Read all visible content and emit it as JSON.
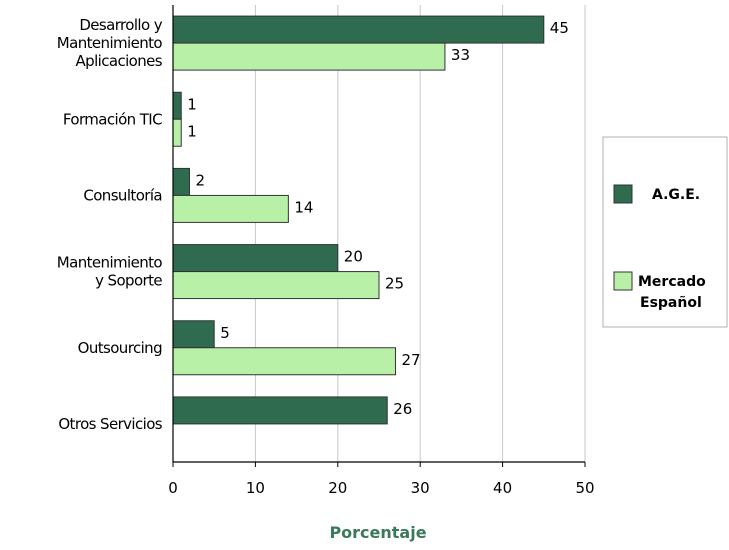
{
  "chart_data": {
    "type": "bar",
    "orientation": "horizontal",
    "categories": [
      [
        "Desarrollo y",
        "Mantenimiento",
        "Aplicaciones"
      ],
      [
        "Formación TIC"
      ],
      [
        "Consultoría"
      ],
      [
        "Mantenimiento",
        "y Soporte"
      ],
      [
        "Outsourcing"
      ],
      [
        "Otros Servicios"
      ]
    ],
    "series": [
      {
        "name": "A.G.E.",
        "values": [
          45,
          1,
          2,
          20,
          5,
          26
        ],
        "color": "#2e6b4f"
      },
      {
        "name": "Mercado Español",
        "values": [
          33,
          1,
          14,
          25,
          27,
          null
        ],
        "color": "#b8f0a8"
      }
    ],
    "xlabel": "Porcentaje",
    "xlim": [
      0,
      50
    ],
    "xticks": [
      0,
      10,
      20,
      30,
      40,
      50
    ],
    "grid": true,
    "legend_position": "right",
    "legend": [
      {
        "lines": [
          "A.G.E."
        ]
      },
      {
        "lines": [
          "Mercado",
          "Español"
        ]
      }
    ]
  }
}
